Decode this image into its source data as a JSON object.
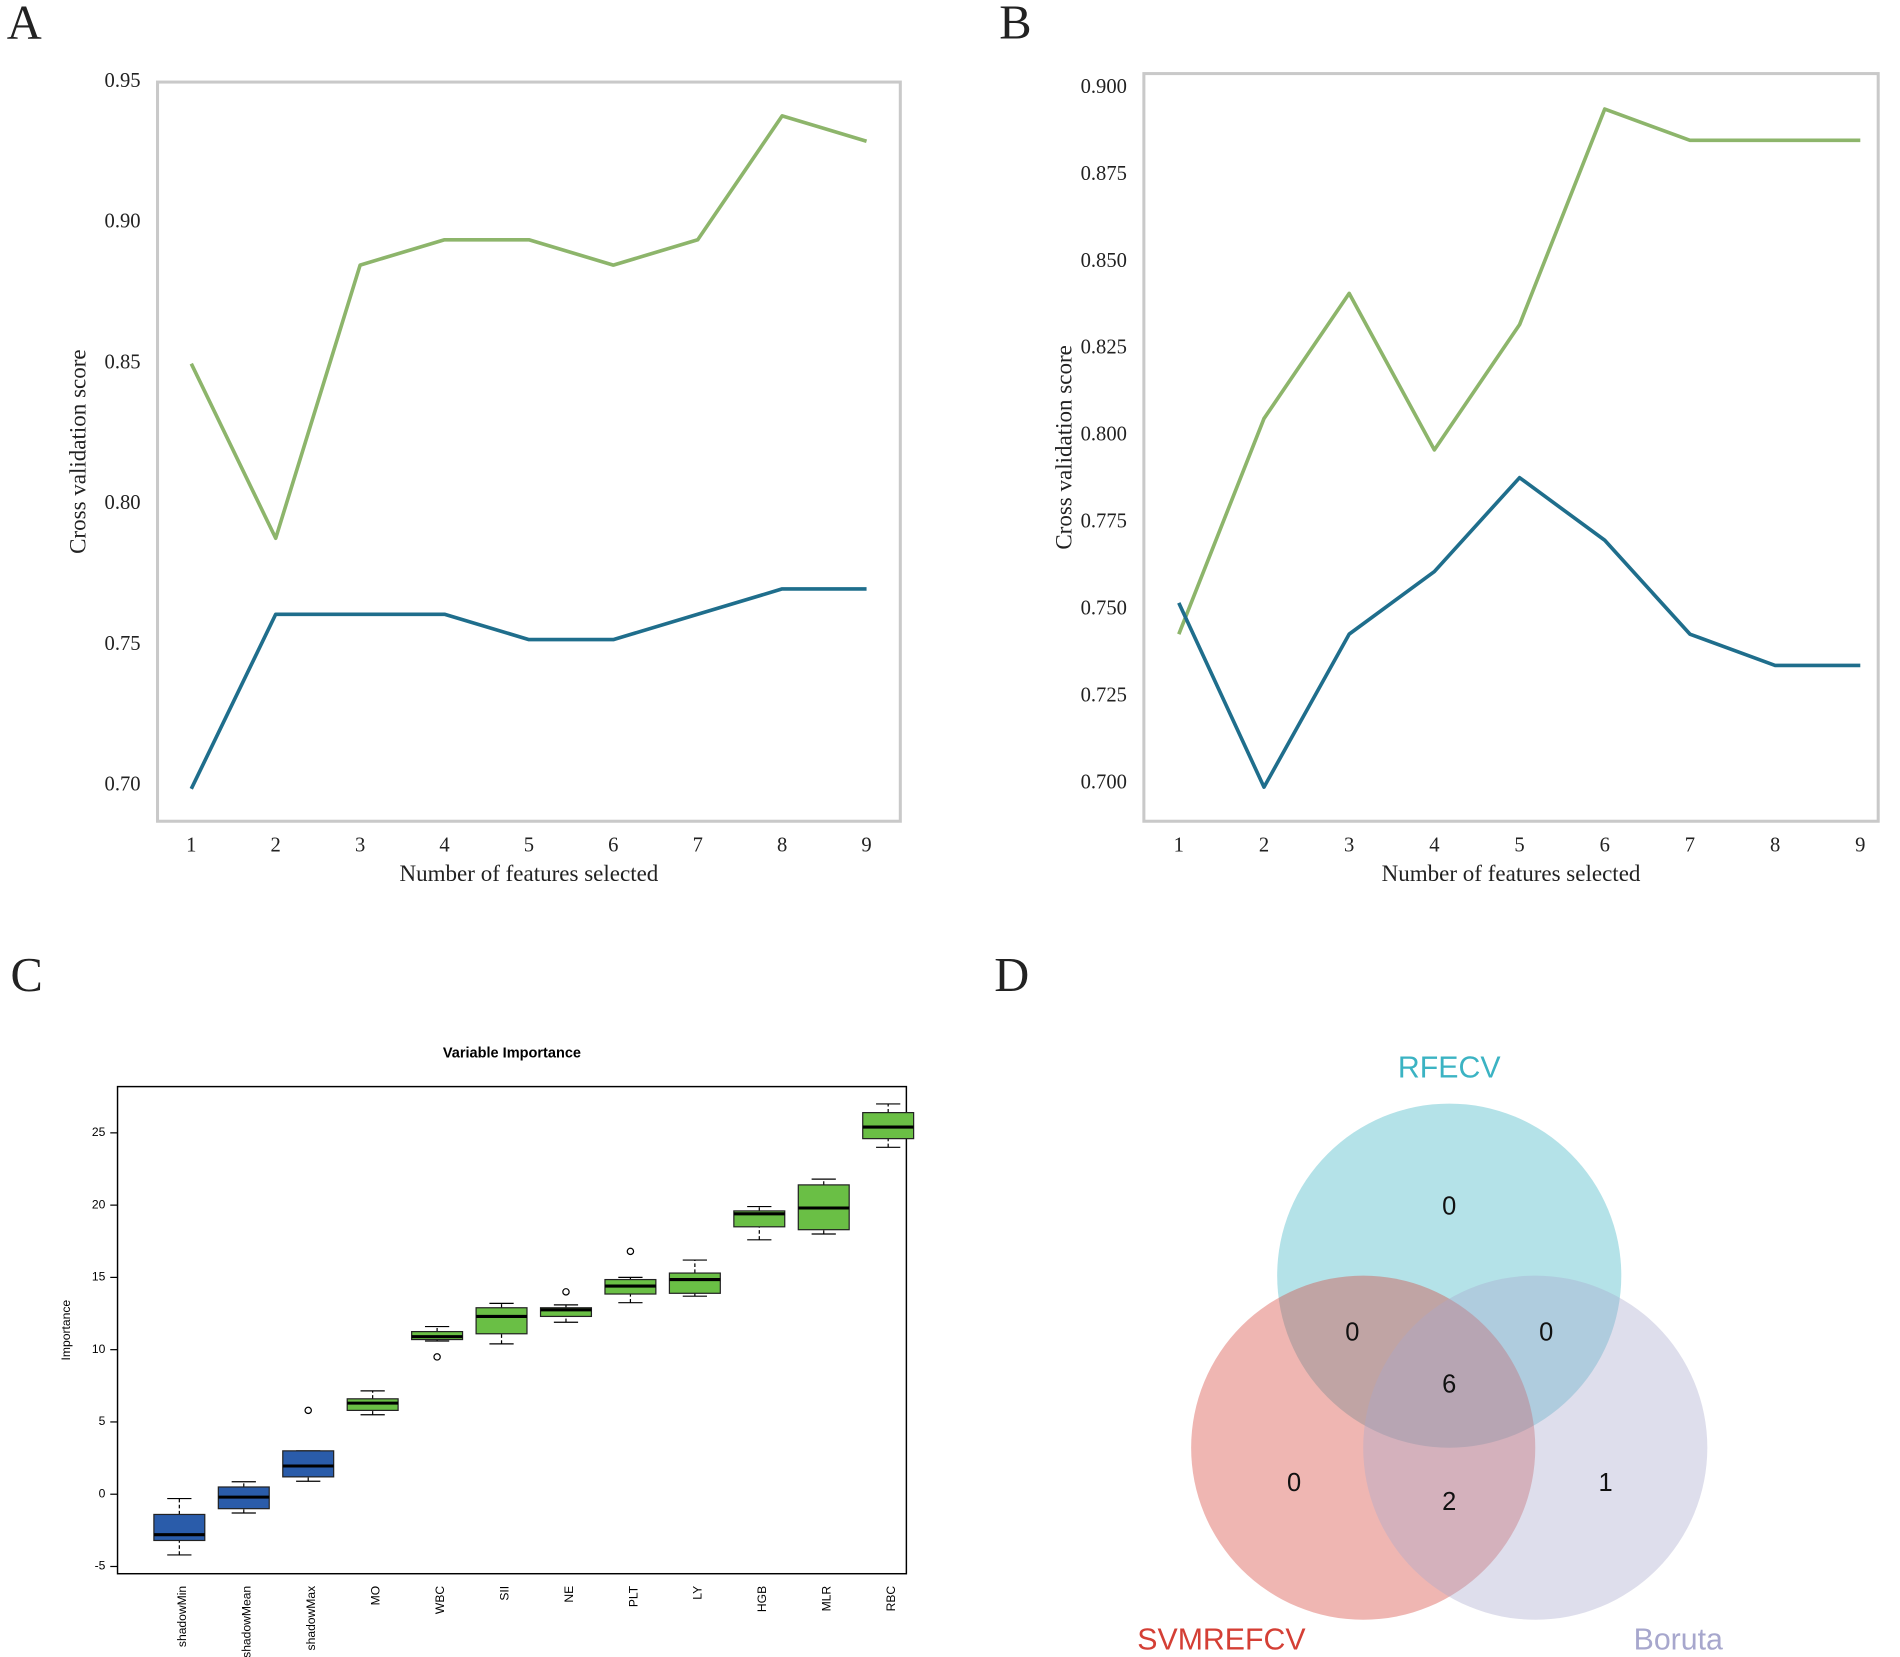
{
  "chart_data": [
    {
      "type": "line",
      "panel_label": "A",
      "xlabel": "Number of features selected",
      "ylabel": "Cross validation score",
      "x": [
        1,
        2,
        3,
        4,
        5,
        6,
        7,
        8,
        9
      ],
      "xlim": [
        0.6,
        9.4
      ],
      "xticks": [
        1,
        2,
        3,
        4,
        5,
        6,
        7,
        8,
        9
      ],
      "ylim": [
        0.6875,
        0.95
      ],
      "yticks": [
        {
          "value": 0.7,
          "label": "0.70"
        },
        0.75,
        {
          "value": 0.8,
          "label": "0.80"
        },
        0.85,
        {
          "value": 0.9,
          "label": "0.90"
        },
        0.95
      ],
      "series": [
        {
          "color": "#8db56b",
          "values": [
            0.85,
            0.788,
            0.885,
            0.894,
            0.894,
            0.885,
            0.894,
            0.938,
            0.929
          ]
        },
        {
          "color": "#1f6e8c",
          "values": [
            0.699,
            0.761,
            0.761,
            0.761,
            0.752,
            0.752,
            0.761,
            0.77,
            0.77
          ]
        }
      ]
    },
    {
      "type": "line",
      "panel_label": "B",
      "xlabel": "Number of features selected",
      "ylabel": "Cross validation score",
      "x": [
        1,
        2,
        3,
        4,
        5,
        6,
        7,
        8,
        9
      ],
      "xlim": [
        0.59,
        9.21
      ],
      "xticks": [
        1,
        2,
        3,
        4,
        5,
        6,
        7,
        8,
        9
      ],
      "ylim": [
        0.6892,
        0.9042
      ],
      "yticks": [
        {
          "value": 0.7,
          "label": "0.700"
        },
        0.725,
        {
          "value": 0.75,
          "label": "0.750"
        },
        0.775,
        {
          "value": 0.8,
          "label": "0.800"
        },
        0.825,
        {
          "value": 0.85,
          "label": "0.850"
        },
        0.875,
        {
          "value": 0.9,
          "label": "0.900"
        }
      ],
      "series": [
        {
          "color": "#8db56b",
          "values": [
            0.743,
            0.805,
            0.841,
            0.796,
            0.832,
            0.894,
            0.885,
            0.885,
            0.885
          ]
        },
        {
          "color": "#1f6e8c",
          "values": [
            0.752,
            0.699,
            0.743,
            0.761,
            0.788,
            0.77,
            0.743,
            0.734,
            0.734
          ]
        }
      ]
    },
    {
      "type": "box",
      "panel_label": "C",
      "title": "Variable Importance",
      "ylabel": "Importance",
      "ylim": [
        -5.5,
        28.2
      ],
      "yticks": [
        -5,
        0,
        5,
        10,
        15,
        20,
        25
      ],
      "categories": [
        "shadowMin",
        "shadowMean",
        "shadowMax",
        "MO",
        "WBC",
        "SII",
        "NE",
        "PLT",
        "LY",
        "HGB",
        "MLR",
        "RBC"
      ],
      "boxes": [
        {
          "min": -4.2,
          "q1": -3.2,
          "median": -2.8,
          "q3": -1.4,
          "max": -0.3,
          "color": "#2a5caa"
        },
        {
          "min": -1.3,
          "q1": -1.0,
          "median": -0.2,
          "q3": 0.5,
          "max": 0.86,
          "color": "#2a5caa"
        },
        {
          "min": 0.9,
          "q1": 1.2,
          "median": 1.95,
          "q3": 3.0,
          "max": 3.0,
          "outliers": [
            5.8
          ],
          "color": "#2a5caa"
        },
        {
          "min": 5.5,
          "q1": 5.8,
          "median": 6.3,
          "q3": 6.6,
          "max": 7.15,
          "color": "#6abf45"
        },
        {
          "min": 10.6,
          "q1": 10.7,
          "median": 10.9,
          "q3": 11.25,
          "max": 11.6,
          "outliers": [
            9.5
          ],
          "color": "#6abf45"
        },
        {
          "min": 10.4,
          "q1": 11.1,
          "median": 12.3,
          "q3": 12.9,
          "max": 13.2,
          "color": "#6abf45"
        },
        {
          "min": 11.9,
          "q1": 12.3,
          "median": 12.75,
          "q3": 12.9,
          "max": 13.1,
          "outliers": [
            14.0
          ],
          "color": "#6abf45"
        },
        {
          "min": 13.25,
          "q1": 13.85,
          "median": 14.4,
          "q3": 14.85,
          "max": 15.0,
          "outliers": [
            16.8
          ],
          "color": "#6abf45"
        },
        {
          "min": 13.7,
          "q1": 13.9,
          "median": 14.85,
          "q3": 15.3,
          "max": 16.2,
          "color": "#6abf45"
        },
        {
          "min": 17.6,
          "q1": 18.5,
          "median": 19.4,
          "q3": 19.6,
          "max": 19.9,
          "color": "#6abf45"
        },
        {
          "min": 18.0,
          "q1": 18.3,
          "median": 19.8,
          "q3": 21.4,
          "max": 21.8,
          "color": "#6abf45"
        },
        {
          "min": 24.0,
          "q1": 24.6,
          "median": 25.4,
          "q3": 26.4,
          "max": 27.0,
          "color": "#6abf45"
        }
      ]
    },
    {
      "type": "venn",
      "panel_label": "D",
      "sets": [
        {
          "name": "RFECV",
          "color": "#3bb3c3"
        },
        {
          "name": "SVMREFCV",
          "color": "#d43f35"
        },
        {
          "name": "Boruta",
          "color": "#a7a7cd"
        }
      ],
      "values": [
        0,
        0,
        1,
        0,
        0,
        6,
        2
      ]
    }
  ]
}
